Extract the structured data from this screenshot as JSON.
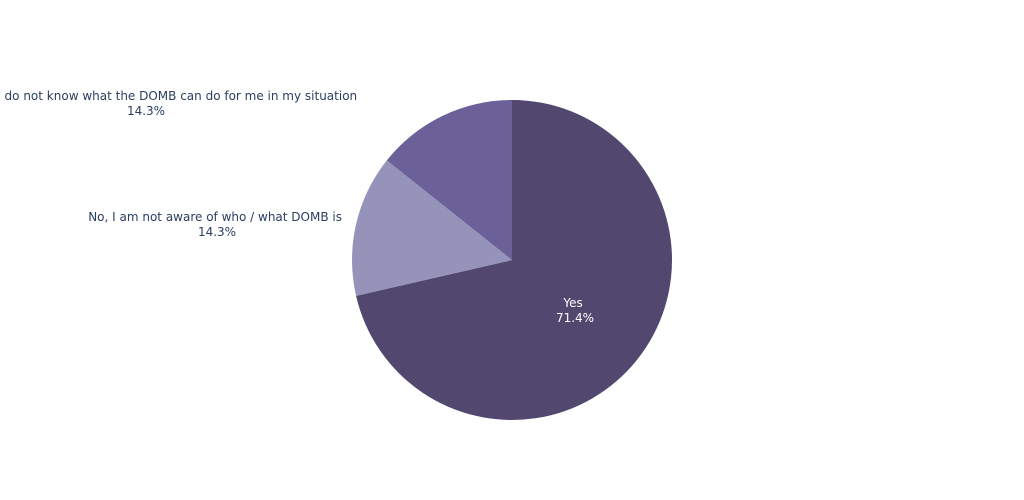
{
  "chart_data": {
    "type": "pie",
    "slices": [
      {
        "label": "Yes",
        "percent_text": "71.4%",
        "value": 71.4,
        "color": "#51476f",
        "text_position": "inside"
      },
      {
        "label": "No, I am not aware of who / what DOMB is",
        "percent_text": "14.3%",
        "value": 14.3,
        "color": "#9593b9",
        "text_position": "outside"
      },
      {
        "label": "exists, but I do not  know what the DOMB can do for me in my situation",
        "percent_text": "14.3%",
        "value": 14.3,
        "color": "#6b6198",
        "text_position": "outside"
      }
    ],
    "start": "top",
    "direction": "clockwise",
    "legend": "none",
    "label_color": "#2a3f5f",
    "inside_label_color": "#ffffff"
  }
}
